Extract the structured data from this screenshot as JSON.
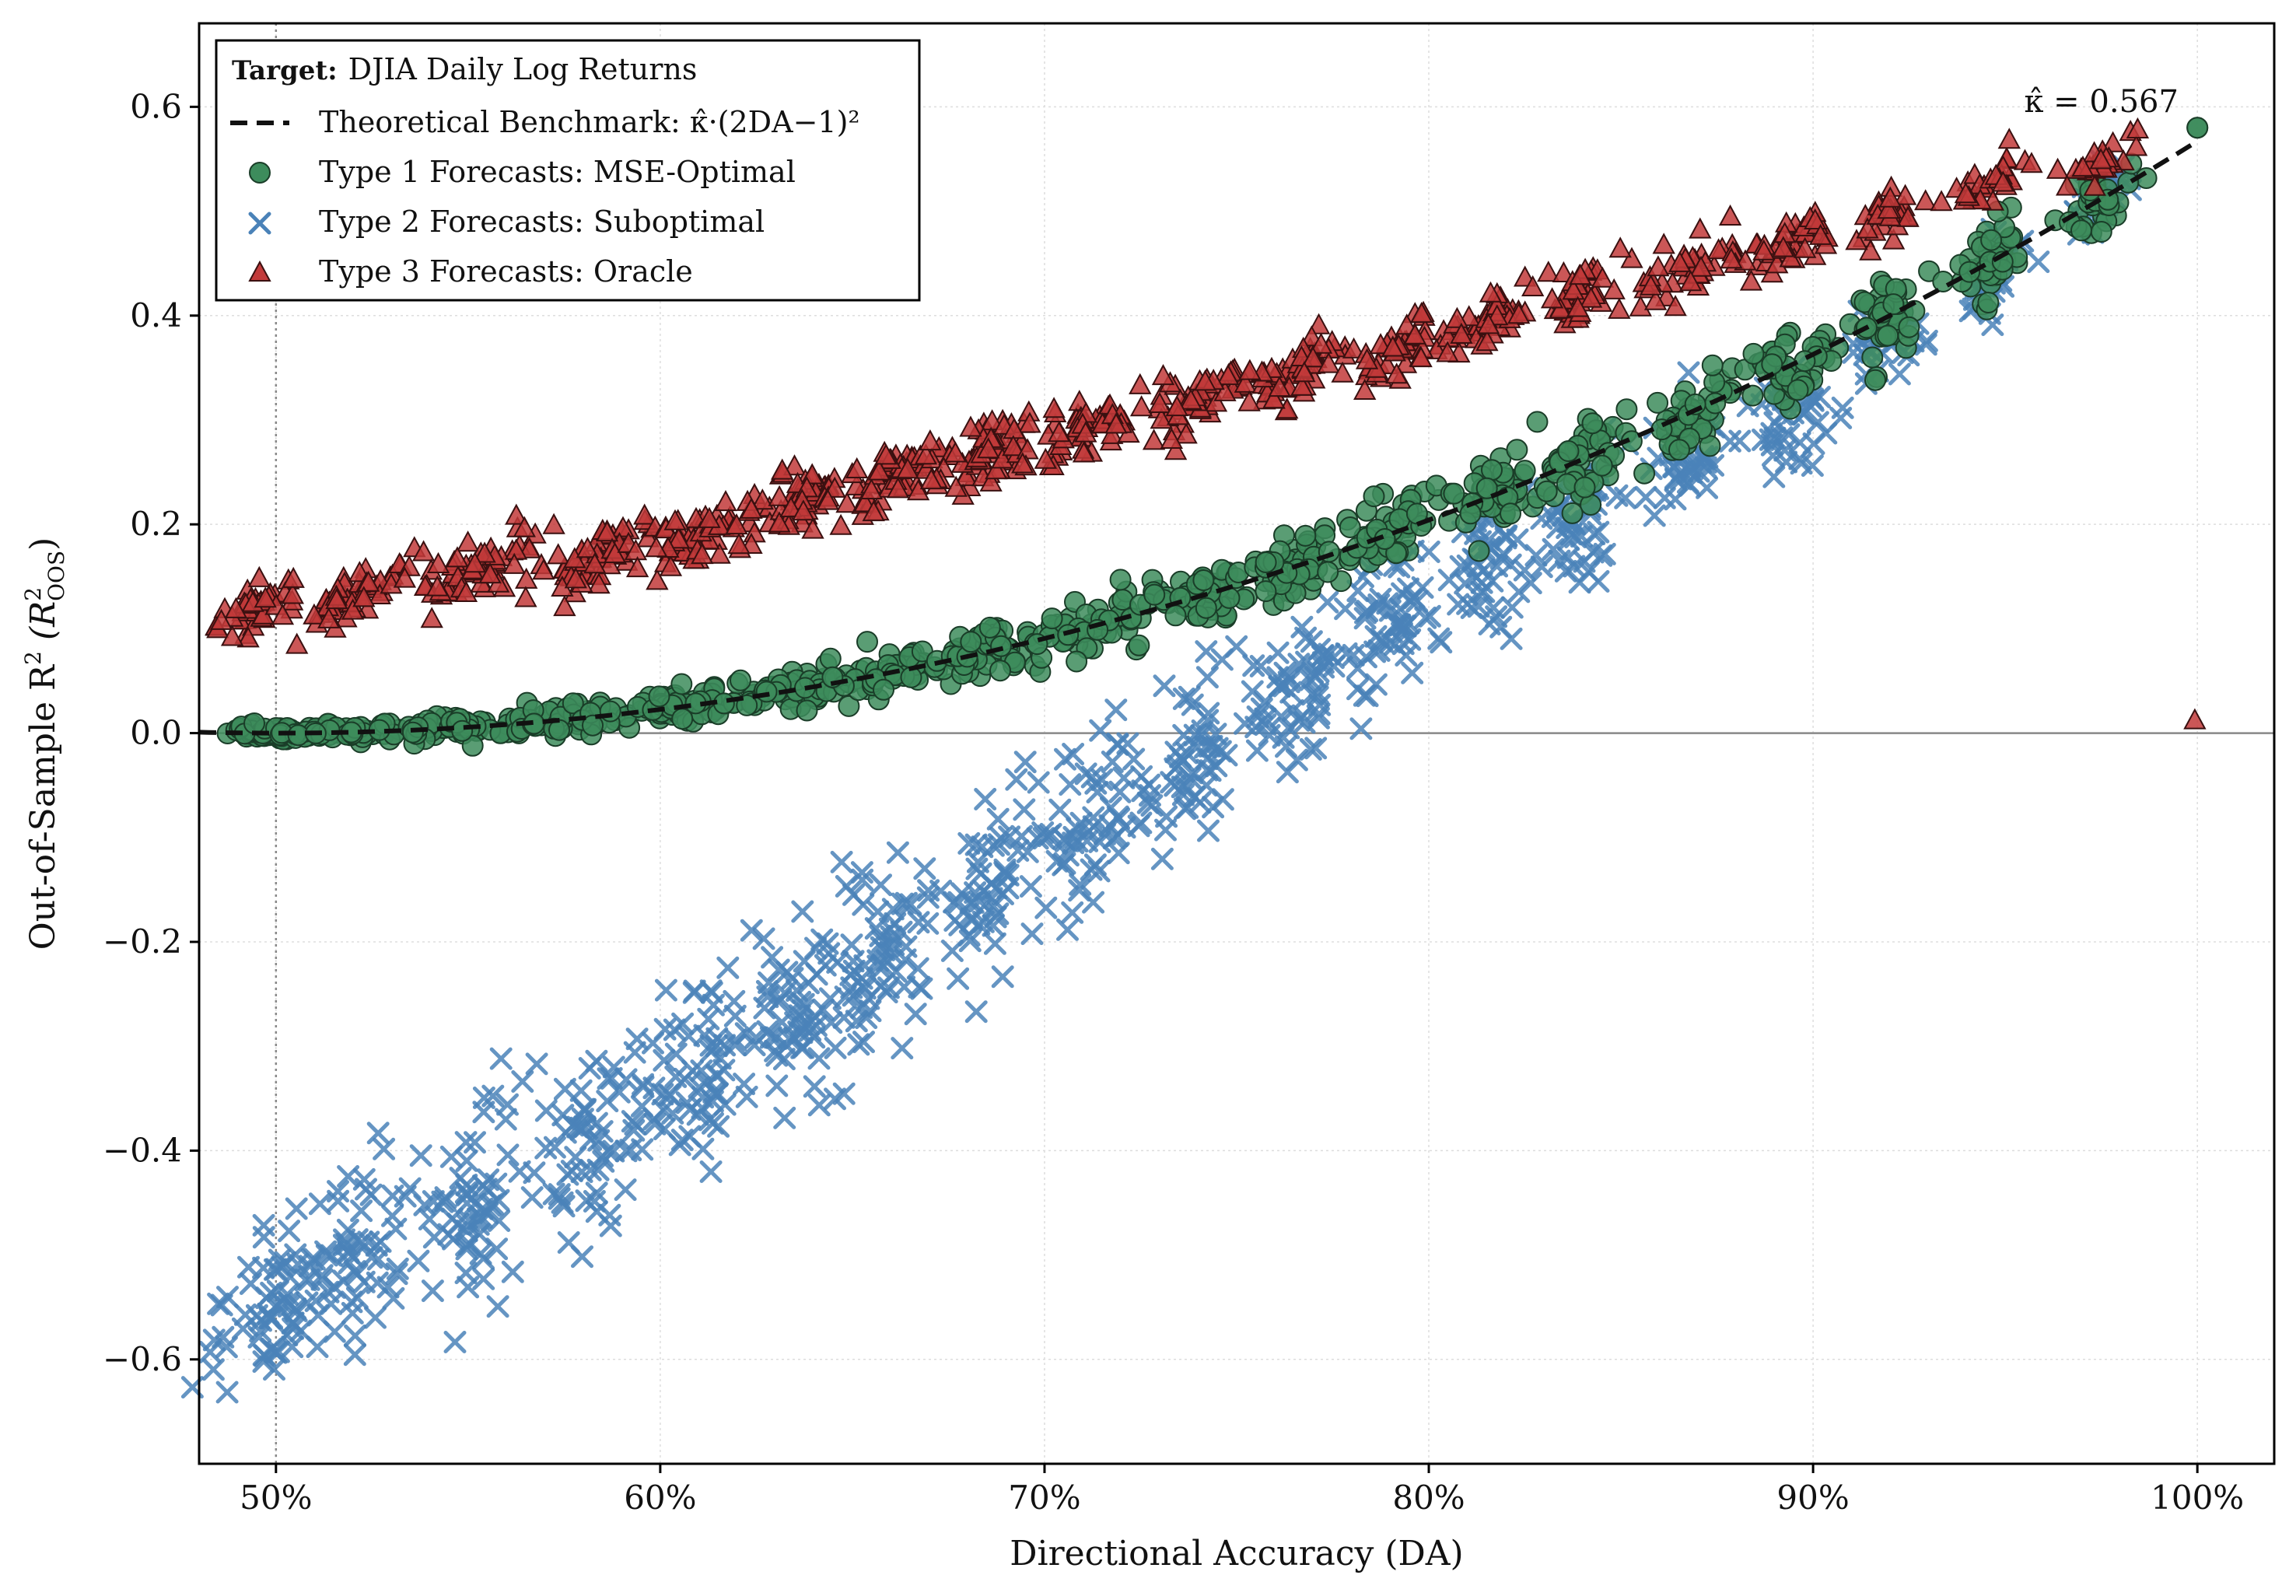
{
  "chart_data": {
    "type": "scatter",
    "title": "",
    "xlabel": "Directional Accuracy (DA)",
    "ylabel": "Out-of-Sample R² (R²_OOS)",
    "ylabel_parts": {
      "main": "Out-of-Sample R",
      "sup": "2",
      "open": " (R",
      "sub": "OOS",
      "close": ")"
    },
    "xlim": [
      0.48,
      1.02
    ],
    "ylim": [
      -0.7,
      0.68
    ],
    "x_ticks": [
      0.5,
      0.6,
      0.7,
      0.8,
      0.9,
      1.0
    ],
    "x_tick_labels": [
      "50%",
      "60%",
      "70%",
      "80%",
      "90%",
      "100%"
    ],
    "y_ticks": [
      -0.6,
      -0.4,
      -0.2,
      0.0,
      0.2,
      0.4,
      0.6
    ],
    "y_tick_labels": [
      "−0.6",
      "−0.4",
      "−0.2",
      "0.0",
      "0.2",
      "0.4",
      "0.6"
    ],
    "grid": true,
    "reference_lines": {
      "horizontal_y": 0.0,
      "vertical_x": 0.5
    },
    "legend": {
      "placement": "top-left",
      "target_label": "Target:",
      "target_value": "DJIA Daily Log Returns",
      "benchmark_label": "Theoretical Benchmark: κ̂·(2DA−1)²",
      "type1_label": "Type 1 Forecasts: MSE-Optimal",
      "type2_label": "Type 2 Forecasts: Suboptimal",
      "type3_label": "Type 3 Forecasts: Oracle"
    },
    "annotation": {
      "text": "κ̂ = 0.567",
      "x": 0.975,
      "y": 0.595
    },
    "benchmark": {
      "name": "Theoretical Benchmark",
      "kappa": 0.567,
      "x_range": [
        0.48,
        1.0
      ]
    },
    "series": [
      {
        "name": "Type 1 Forecasts: MSE-Optimal",
        "marker": "circle",
        "clusters": [
          {
            "x": 0.497,
            "xs": 0.0045,
            "off": 0.0,
            "ys": 0.003,
            "n": 45
          },
          {
            "x": 0.515,
            "xs": 0.008,
            "off": 0.0,
            "ys": 0.004,
            "n": 50
          },
          {
            "x": 0.545,
            "xs": 0.01,
            "off": 0.0,
            "ys": 0.005,
            "n": 60
          },
          {
            "x": 0.578,
            "xs": 0.01,
            "off": 0.0,
            "ys": 0.007,
            "n": 60
          },
          {
            "x": 0.607,
            "xs": 0.008,
            "off": 0.0,
            "ys": 0.008,
            "n": 55
          },
          {
            "x": 0.635,
            "xs": 0.008,
            "off": 0.0,
            "ys": 0.01,
            "n": 55
          },
          {
            "x": 0.66,
            "xs": 0.008,
            "off": 0.0,
            "ys": 0.01,
            "n": 55
          },
          {
            "x": 0.685,
            "xs": 0.008,
            "off": 0.0,
            "ys": 0.012,
            "n": 55
          },
          {
            "x": 0.712,
            "xs": 0.008,
            "off": 0.0,
            "ys": 0.013,
            "n": 55
          },
          {
            "x": 0.74,
            "xs": 0.007,
            "off": 0.0,
            "ys": 0.014,
            "n": 50
          },
          {
            "x": 0.765,
            "xs": 0.006,
            "off": 0.0,
            "ys": 0.016,
            "n": 50
          },
          {
            "x": 0.79,
            "xs": 0.007,
            "off": 0.0,
            "ys": 0.016,
            "n": 50
          },
          {
            "x": 0.815,
            "xs": 0.006,
            "off": 0.0,
            "ys": 0.018,
            "n": 50
          },
          {
            "x": 0.84,
            "xs": 0.006,
            "off": 0.0,
            "ys": 0.02,
            "n": 50
          },
          {
            "x": 0.868,
            "xs": 0.006,
            "off": 0.0,
            "ys": 0.02,
            "n": 45
          },
          {
            "x": 0.895,
            "xs": 0.006,
            "off": 0.0,
            "ys": 0.02,
            "n": 45
          },
          {
            "x": 0.92,
            "xs": 0.005,
            "off": 0.0,
            "ys": 0.02,
            "n": 40
          },
          {
            "x": 0.947,
            "xs": 0.004,
            "off": 0.0,
            "ys": 0.02,
            "n": 35
          },
          {
            "x": 0.975,
            "xs": 0.004,
            "off": 0.0,
            "ys": 0.015,
            "n": 30
          },
          {
            "x": 1.0,
            "xs": 0.0,
            "off": 0.013,
            "ys": 0.0,
            "n": 2
          }
        ]
      },
      {
        "name": "Type 2 Forecasts: Suboptimal",
        "marker": "x",
        "clusters": [
          {
            "x": 0.497,
            "xs": 0.006,
            "off": -0.555,
            "ys": 0.04,
            "n": 60
          },
          {
            "x": 0.52,
            "xs": 0.008,
            "off": -0.505,
            "ys": 0.045,
            "n": 60
          },
          {
            "x": 0.553,
            "xs": 0.008,
            "off": -0.45,
            "ys": 0.045,
            "n": 65
          },
          {
            "x": 0.582,
            "xs": 0.008,
            "off": -0.385,
            "ys": 0.045,
            "n": 65
          },
          {
            "x": 0.61,
            "xs": 0.007,
            "off": -0.32,
            "ys": 0.045,
            "n": 65
          },
          {
            "x": 0.635,
            "xs": 0.007,
            "off": -0.265,
            "ys": 0.045,
            "n": 65
          },
          {
            "x": 0.66,
            "xs": 0.007,
            "off": -0.205,
            "ys": 0.04,
            "n": 60
          },
          {
            "x": 0.685,
            "xs": 0.007,
            "off": -0.15,
            "ys": 0.04,
            "n": 60
          },
          {
            "x": 0.712,
            "xs": 0.007,
            "off": -0.085,
            "ys": 0.04,
            "n": 60
          },
          {
            "x": 0.74,
            "xs": 0.007,
            "off": -0.02,
            "ys": 0.04,
            "n": 55
          },
          {
            "x": 0.765,
            "xs": 0.006,
            "off": 0.04,
            "ys": 0.035,
            "n": 55
          },
          {
            "x": 0.79,
            "xs": 0.006,
            "off": 0.1,
            "ys": 0.035,
            "n": 55
          },
          {
            "x": 0.815,
            "xs": 0.006,
            "off": 0.16,
            "ys": 0.03,
            "n": 50
          },
          {
            "x": 0.84,
            "xs": 0.006,
            "off": 0.21,
            "ys": 0.03,
            "n": 50
          },
          {
            "x": 0.868,
            "xs": 0.006,
            "off": 0.26,
            "ys": 0.025,
            "n": 45
          },
          {
            "x": 0.895,
            "xs": 0.006,
            "off": 0.31,
            "ys": 0.025,
            "n": 45
          },
          {
            "x": 0.92,
            "xs": 0.005,
            "off": 0.38,
            "ys": 0.02,
            "n": 35
          },
          {
            "x": 0.947,
            "xs": 0.004,
            "off": 0.44,
            "ys": 0.02,
            "n": 35
          },
          {
            "x": 0.975,
            "xs": 0.004,
            "off": 0.51,
            "ys": 0.015,
            "n": 30
          }
        ]
      },
      {
        "name": "Type 3 Forecasts: Oracle",
        "marker": "triangle",
        "clusters": [
          {
            "x": 0.495,
            "xs": 0.005,
            "off": 0.12,
            "ys": 0.012,
            "n": 45
          },
          {
            "x": 0.52,
            "xs": 0.008,
            "off": 0.135,
            "ys": 0.012,
            "n": 55
          },
          {
            "x": 0.553,
            "xs": 0.008,
            "off": 0.158,
            "ys": 0.012,
            "n": 60
          },
          {
            "x": 0.582,
            "xs": 0.008,
            "off": 0.17,
            "ys": 0.013,
            "n": 60
          },
          {
            "x": 0.61,
            "xs": 0.007,
            "off": 0.19,
            "ys": 0.013,
            "n": 60
          },
          {
            "x": 0.635,
            "xs": 0.007,
            "off": 0.22,
            "ys": 0.013,
            "n": 60
          },
          {
            "x": 0.66,
            "xs": 0.007,
            "off": 0.245,
            "ys": 0.013,
            "n": 60
          },
          {
            "x": 0.685,
            "xs": 0.007,
            "off": 0.27,
            "ys": 0.013,
            "n": 60
          },
          {
            "x": 0.712,
            "xs": 0.007,
            "off": 0.295,
            "ys": 0.013,
            "n": 60
          },
          {
            "x": 0.74,
            "xs": 0.007,
            "off": 0.32,
            "ys": 0.013,
            "n": 55
          },
          {
            "x": 0.765,
            "xs": 0.006,
            "off": 0.345,
            "ys": 0.013,
            "n": 55
          },
          {
            "x": 0.79,
            "xs": 0.006,
            "off": 0.37,
            "ys": 0.013,
            "n": 50
          },
          {
            "x": 0.815,
            "xs": 0.006,
            "off": 0.395,
            "ys": 0.013,
            "n": 50
          },
          {
            "x": 0.84,
            "xs": 0.006,
            "off": 0.42,
            "ys": 0.013,
            "n": 45
          },
          {
            "x": 0.868,
            "xs": 0.006,
            "off": 0.445,
            "ys": 0.013,
            "n": 45
          },
          {
            "x": 0.895,
            "xs": 0.006,
            "off": 0.47,
            "ys": 0.012,
            "n": 40
          },
          {
            "x": 0.92,
            "xs": 0.005,
            "off": 0.5,
            "ys": 0.012,
            "n": 35
          },
          {
            "x": 0.947,
            "xs": 0.004,
            "off": 0.525,
            "ys": 0.012,
            "n": 30
          },
          {
            "x": 0.975,
            "xs": 0.004,
            "off": 0.55,
            "ys": 0.01,
            "n": 30
          },
          {
            "x": 1.0,
            "xs": 0.0,
            "off": 0.013,
            "ys": 0.0,
            "n": 1
          }
        ]
      }
    ]
  },
  "colors": {
    "type1_fill": "#3d8c5c",
    "type1_edge": "#1a3d28",
    "type2": "#4a82b8",
    "type3_fill": "#c23a3a",
    "type3_edge": "#3a1010",
    "benchmark": "#111111",
    "grid": "#dddddd",
    "refline": "#888888"
  }
}
